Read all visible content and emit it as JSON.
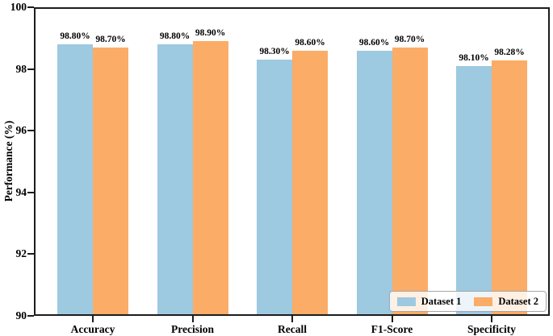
{
  "figure": {
    "background": "#ffffff"
  },
  "chart_data": {
    "type": "bar",
    "title": "",
    "xlabel": "",
    "ylabel": "Performance (%)",
    "categories": [
      "Accuracy",
      "Precision",
      "Recall",
      "F1-Score",
      "Specificity"
    ],
    "series": [
      {
        "name": "Dataset 1",
        "color": "#9dc9e1",
        "values": [
          98.8,
          98.8,
          98.3,
          98.6,
          98.1
        ],
        "bar_labels": [
          "98.80%",
          "98.80%",
          "98.30%",
          "98.60%",
          "98.10%"
        ]
      },
      {
        "name": "Dataset 2",
        "color": "#fbac66",
        "values": [
          98.7,
          98.9,
          98.6,
          98.7,
          98.28
        ],
        "bar_labels": [
          "98.70%",
          "98.90%",
          "98.60%",
          "98.70%",
          "98.28%"
        ]
      }
    ],
    "ylim": [
      90,
      100
    ],
    "yticks": [
      90,
      92,
      94,
      96,
      98,
      100
    ],
    "grid": false,
    "legend_position": "lower-right",
    "legend_labels": [
      "Dataset 1",
      "Dataset 2"
    ],
    "spine_color": "#1c1c1c"
  }
}
